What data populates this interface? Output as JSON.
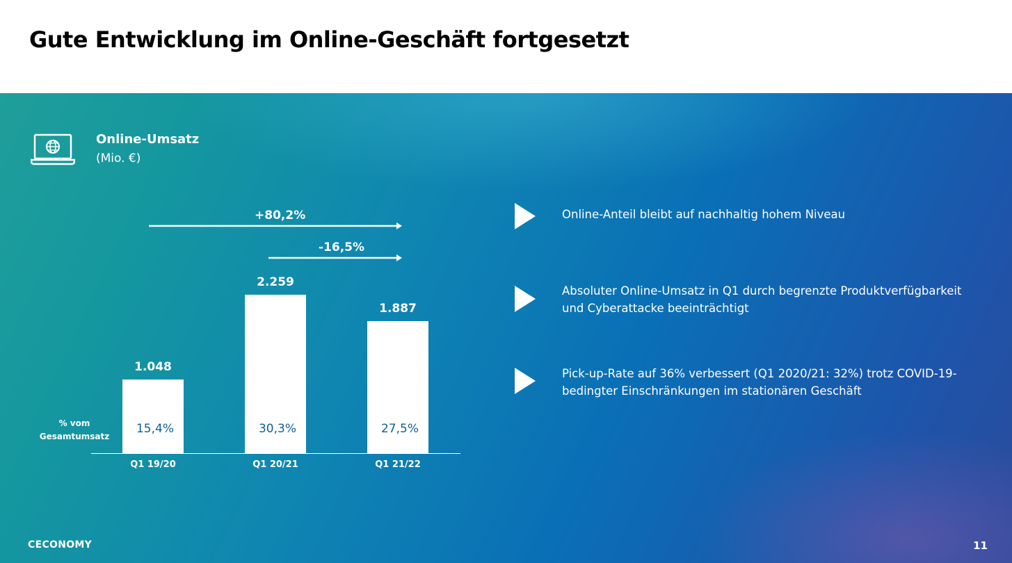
{
  "slide": {
    "title": "Gute Entwicklung im Online-Geschäft fortgesetzt",
    "page_number": "11",
    "logo_text": "CECONOMY"
  },
  "kpi": {
    "title": "Online-Umsatz",
    "unit": "(Mio. €)",
    "icon": "laptop-globe-icon"
  },
  "chart_data": {
    "type": "bar",
    "title": "Online-Umsatz",
    "ylabel": "(Mio. €)",
    "xlabel": "",
    "categories": [
      "Q1 19/20",
      "Q1 20/21",
      "Q1 21/22"
    ],
    "values": [
      1048,
      2259,
      1887
    ],
    "value_labels": [
      "1.048",
      "2.259",
      "1.887"
    ],
    "share_label": "% vom Gesamtumsatz",
    "share_values": [
      "15,4%",
      "30,3%",
      "27,5%"
    ],
    "ylim": [
      0,
      2259
    ],
    "growth_annotations": [
      {
        "label": "+80,2%",
        "from": "Q1 19/20",
        "to": "Q1 21/22"
      },
      {
        "label": "-16,5%",
        "from": "Q1 20/21",
        "to": "Q1 21/22"
      }
    ],
    "colors": {
      "bar": "#ffffff",
      "share_text": "#0e5f96",
      "arrow": "#ffffff"
    }
  },
  "bullets": [
    {
      "icon": "play-arrow-icon",
      "text": "Online-Anteil bleibt auf nachhaltig hohem Niveau"
    },
    {
      "icon": "play-arrow-icon",
      "text": "Absoluter Online-Umsatz in Q1 durch begrenzte Produktverfügbarkeit und Cyberattacke beeinträchtigt"
    },
    {
      "icon": "play-arrow-icon",
      "text": "Pick-up-Rate auf 36% verbessert (Q1 2020/21: 32%) trotz COVID-19-bedingter Einschränkungen im stationären Geschäft"
    }
  ]
}
